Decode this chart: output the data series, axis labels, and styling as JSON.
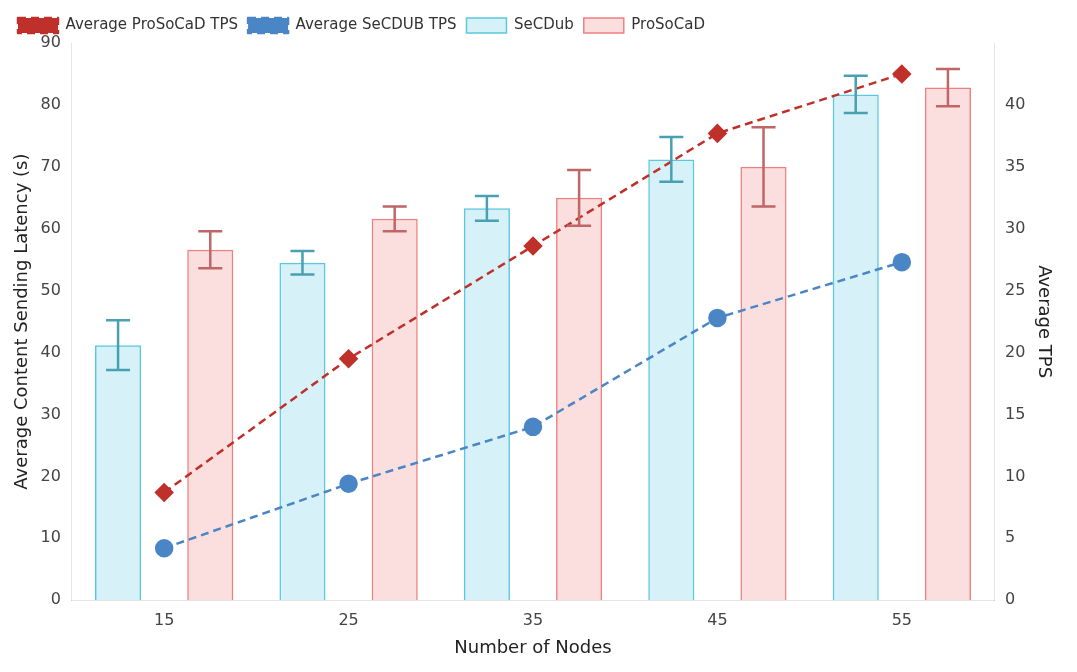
{
  "chart_data": {
    "type": "bar",
    "xlabel": "Number of Nodes",
    "ylabel": "Average Content Sending Latency (s)",
    "y2label": "Average TPS",
    "categories": [
      "15",
      "25",
      "35",
      "45",
      "55"
    ],
    "series": [
      {
        "name": "Average ProSoCaD TPS",
        "type": "line",
        "axis": "y2",
        "color": "#c0302a",
        "marker": "diamond",
        "line_style": "dashed",
        "values": [
          8.7,
          19.5,
          28.6,
          37.7,
          42.5
        ]
      },
      {
        "name": "Average SeCDUB TPS",
        "type": "line",
        "axis": "y2",
        "color": "#4a86c5",
        "marker": "circle",
        "line_style": "dashed",
        "values": [
          4.2,
          9.4,
          14.0,
          22.8,
          27.3
        ]
      },
      {
        "name": "SeCDub",
        "color": "#5bc8de",
        "values": [
          41.2,
          54.5,
          63.3,
          71.2,
          81.7
        ],
        "errors": [
          4,
          1.9,
          2,
          3.6,
          3
        ]
      },
      {
        "name": "ProSoCaD",
        "color": "#f08080",
        "values": [
          56.6,
          61.6,
          65,
          70,
          82.8
        ],
        "errors": [
          3,
          2,
          4.5,
          6.4,
          3
        ]
      }
    ],
    "ylim": [
      0,
      90
    ],
    "yticks": [
      0,
      10,
      20,
      30,
      40,
      50,
      60,
      70,
      80,
      90
    ],
    "y2lim": [
      0,
      45
    ],
    "y2ticks": [
      0,
      5,
      10,
      15,
      20,
      25,
      30,
      35,
      40
    ],
    "grid": false,
    "legend": "top left"
  }
}
